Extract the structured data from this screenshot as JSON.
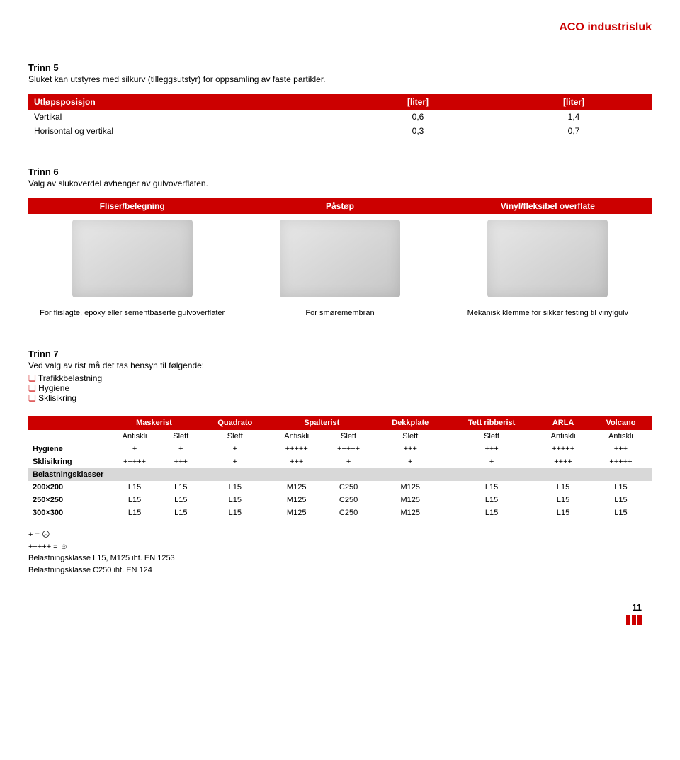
{
  "header": {
    "brand": "ACO industrisluk"
  },
  "step5": {
    "title": "Trinn 5",
    "desc": "Sluket kan utstyres med silkurv (tilleggsutstyr) for oppsamling av faste partikler.",
    "table": {
      "headers": [
        "Utløpsposisjon",
        "[liter]",
        "[liter]"
      ],
      "rows": [
        [
          "Vertikal",
          "0,6",
          "1,4"
        ],
        [
          "Horisontal og vertikal",
          "0,3",
          "0,7"
        ]
      ]
    }
  },
  "step6": {
    "title": "Trinn 6",
    "desc": "Valg av slukoverdel avhenger av gulvoverflaten.",
    "cols": [
      {
        "head": "Fliser/belegning",
        "caption": "For flislagte, epoxy eller sementbaserte gulvoverflater"
      },
      {
        "head": "Påstøp",
        "caption": "For smøremembran"
      },
      {
        "head": "Vinyl/fleksibel overflate",
        "caption": "Mekanisk klemme for sikker festing til vinylgulv"
      }
    ]
  },
  "step7": {
    "title": "Trinn 7",
    "desc": "Ved valg av rist må det tas hensyn til følgende:",
    "bullets": [
      "Trafikkbelastning",
      "Hygiene",
      "Sklisikring"
    ],
    "table": {
      "groups": [
        "Maskerist",
        "Quadrato",
        "Spalterist",
        "Dekkplate",
        "Tett ribberist",
        "ARLA",
        "Volcano"
      ],
      "sub": [
        "Antiskli",
        "Slett",
        "Slett",
        "Antiskli",
        "Slett",
        "Slett",
        "Slett",
        "Antiskli",
        "Antiskli"
      ],
      "rows": [
        {
          "label": "Hygiene",
          "cells": [
            "+",
            "+",
            "+",
            "+++++",
            "+++++",
            "+++",
            "+++",
            "+++++",
            "+++"
          ]
        },
        {
          "label": "Sklisikring",
          "cells": [
            "+++++",
            "+++",
            "+",
            "+++",
            "+",
            "+",
            "+",
            "++++",
            "+++++"
          ]
        },
        {
          "label": "Belastningsklasser",
          "grey": true,
          "cells": [
            "",
            "",
            "",
            "",
            "",
            "",
            "",
            "",
            ""
          ]
        },
        {
          "label": "200×200",
          "cells": [
            "L15",
            "L15",
            "L15",
            "M125",
            "C250",
            "M125",
            "L15",
            "L15",
            "L15"
          ]
        },
        {
          "label": "250×250",
          "cells": [
            "L15",
            "L15",
            "L15",
            "M125",
            "C250",
            "M125",
            "L15",
            "L15",
            "L15"
          ]
        },
        {
          "label": "300×300",
          "cells": [
            "L15",
            "L15",
            "L15",
            "M125",
            "C250",
            "M125",
            "L15",
            "L15",
            "L15"
          ]
        }
      ]
    }
  },
  "footnotes": [
    "+ = ☹",
    "+++++ = ☺",
    "Belastningsklasse L15, M125 iht. EN 1253",
    "Belastningsklasse C250 iht. EN 124"
  ],
  "pagenum": "11"
}
